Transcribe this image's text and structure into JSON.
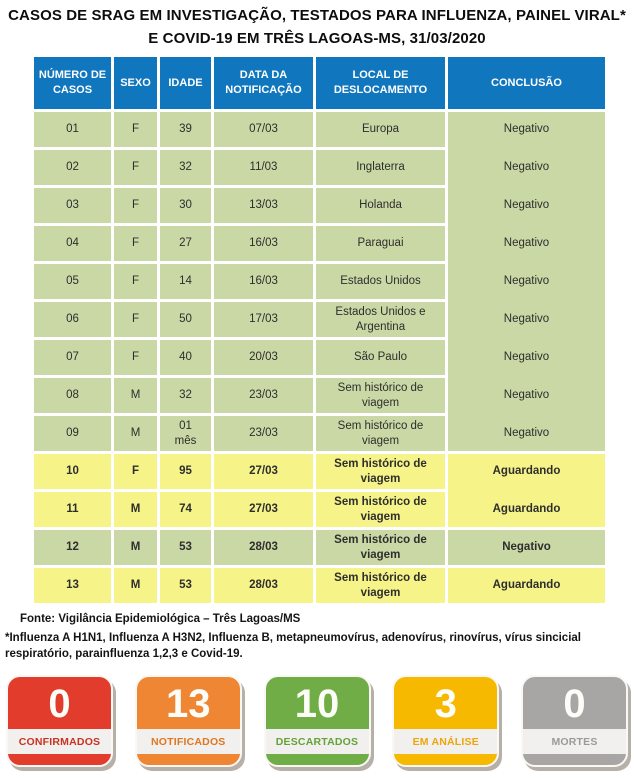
{
  "colors": {
    "header_bg": "#1076bd",
    "row_green": "#c9d8a5",
    "row_yellow": "#f6f488",
    "card_band": "#f2f0ee"
  },
  "title": {
    "line1": "CASOS DE SRAG EM INVESTIGAÇÃO, TESTADOS PARA INFLUENZA, PAINEL VIRAL*",
    "line2": "E COVID-19 EM TRÊS LAGOAS-MS, 31/03/2020"
  },
  "table": {
    "headers": [
      "NÚMERO DE CASOS",
      "SEXO",
      "IDADE",
      "DATA DA NOTIFICAÇÃO",
      "LOCAL DE DESLOCAMENTO",
      "CONCLUSÃO"
    ],
    "rows": [
      {
        "num": "01",
        "sexo": "F",
        "idade": "39",
        "data": "07/03",
        "local": "Europa",
        "conclusao": "Negativo",
        "color": "green",
        "bold": false
      },
      {
        "num": "02",
        "sexo": "F",
        "idade": "32",
        "data": "11/03",
        "local": "Inglaterra",
        "conclusao": "Negativo",
        "color": "green",
        "bold": false
      },
      {
        "num": "03",
        "sexo": "F",
        "idade": "30",
        "data": "13/03",
        "local": "Holanda",
        "conclusao": "Negativo",
        "color": "green",
        "bold": false
      },
      {
        "num": "04",
        "sexo": "F",
        "idade": "27",
        "data": "16/03",
        "local": "Paraguai",
        "conclusao": "Negativo",
        "color": "green",
        "bold": false
      },
      {
        "num": "05",
        "sexo": "F",
        "idade": "14",
        "data": "16/03",
        "local": "Estados Unidos",
        "conclusao": "Negativo",
        "color": "green",
        "bold": false
      },
      {
        "num": "06",
        "sexo": "F",
        "idade": "50",
        "data": "17/03",
        "local": "Estados Unidos e Argentina",
        "conclusao": "Negativo",
        "color": "green",
        "bold": false
      },
      {
        "num": "07",
        "sexo": "F",
        "idade": "40",
        "data": "20/03",
        "local": "São Paulo",
        "conclusao": "Negativo",
        "color": "green",
        "bold": false
      },
      {
        "num": "08",
        "sexo": "M",
        "idade": "32",
        "data": "23/03",
        "local": "Sem histórico de viagem",
        "conclusao": "Negativo",
        "color": "green",
        "bold": false
      },
      {
        "num": "09",
        "sexo": "M",
        "idade": "01 mês",
        "data": "23/03",
        "local": "Sem histórico de viagem",
        "conclusao": "Negativo",
        "color": "green",
        "bold": false
      },
      {
        "num": "10",
        "sexo": "F",
        "idade": "95",
        "data": "27/03",
        "local": "Sem histórico de viagem",
        "conclusao": "Aguardando",
        "color": "yellow",
        "bold": true
      },
      {
        "num": "11",
        "sexo": "M",
        "idade": "74",
        "data": "27/03",
        "local": "Sem histórico de viagem",
        "conclusao": "Aguardando",
        "color": "yellow",
        "bold": true
      },
      {
        "num": "12",
        "sexo": "M",
        "idade": "53",
        "data": "28/03",
        "local": "Sem histórico de viagem",
        "conclusao": "Negativo",
        "color": "green",
        "bold": true
      },
      {
        "num": "13",
        "sexo": "M",
        "idade": "53",
        "data": "28/03",
        "local": "Sem histórico de viagem",
        "conclusao": "Aguardando",
        "color": "yellow",
        "bold": true
      }
    ]
  },
  "fonte": "Fonte: Vigilância Epidemiológica – Três Lagoas/MS",
  "footnote": "*Influenza A H1N1, Influenza A H3N2, Influenza B, metapneumovírus, adenovírus, rinovírus, vírus sincicial respiratório,  parainfluenza 1,2,3 e Covid-19.",
  "cards": [
    {
      "value": "0",
      "label": "CONFIRMADOS",
      "color": "#e23c2d",
      "label_color": "#c93120"
    },
    {
      "value": "13",
      "label": "NOTIFICADOS",
      "color": "#ee8634",
      "label_color": "#e0761f"
    },
    {
      "value": "10",
      "label": "DESCARTADOS",
      "color": "#70ad47",
      "label_color": "#64a238"
    },
    {
      "value": "3",
      "label": "EM ANÁLISE",
      "color": "#f7b800",
      "label_color": "#eca50b"
    },
    {
      "value": "0",
      "label": "MORTES",
      "color": "#a8a6a4",
      "label_color": "#9b9999"
    }
  ]
}
